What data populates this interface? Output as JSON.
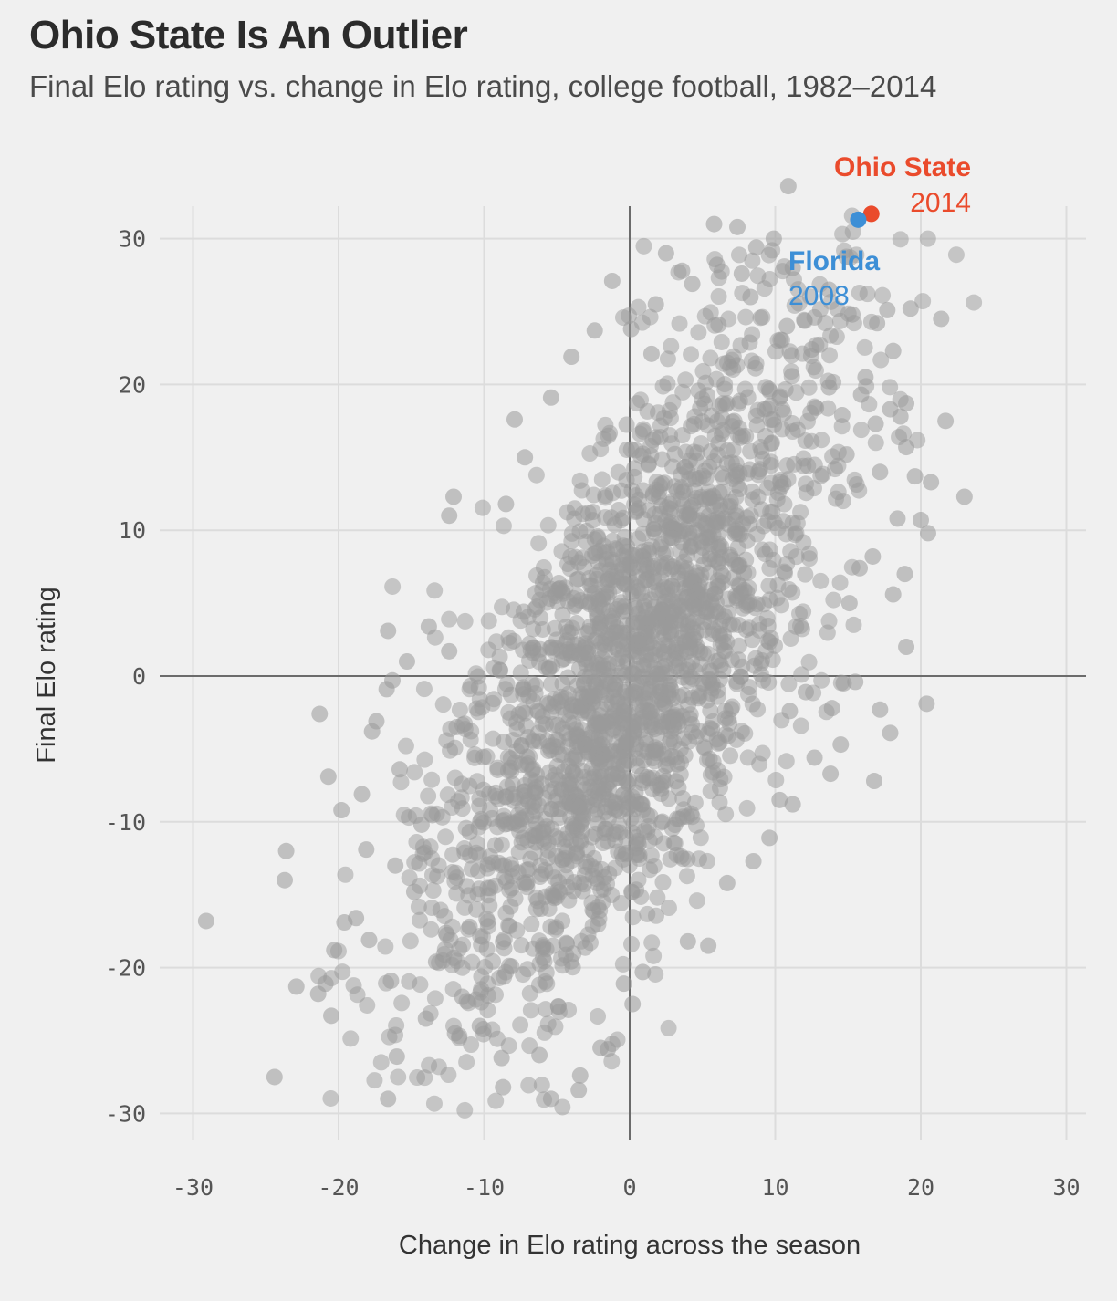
{
  "header": {
    "title": "Ohio State Is An Outlier",
    "subtitle": "Final Elo rating vs. change in Elo rating, college football, 1982–2014"
  },
  "chart_data": {
    "type": "scatter",
    "title": "Ohio State Is An Outlier",
    "subtitle": "Final Elo rating vs. change in Elo rating, college football, 1982–2014",
    "xlabel": "Change in Elo rating across the season",
    "ylabel": "Final Elo rating",
    "xlim": [
      -33,
      31.5
    ],
    "ylim": [
      -33,
      32
    ],
    "x_ticks": [
      -30,
      -20,
      -10,
      0,
      10,
      20,
      30
    ],
    "y_ticks": [
      -30,
      -20,
      -10,
      0,
      10,
      20,
      30
    ],
    "x_tick_labels": [
      "-30",
      "-20",
      "-10",
      "0",
      "10",
      "20",
      "30"
    ],
    "y_tick_labels": [
      "-30",
      "-20",
      "-10",
      "0",
      "10",
      "20",
      "30"
    ],
    "grid": true,
    "colors": {
      "background": "#f0f0f0",
      "grid": "#dcdcdc",
      "zero_line": "#6b6b6b",
      "points": "#999999",
      "ohio_state": "#ea4b2c",
      "florida": "#3d8fd6"
    },
    "highlights": [
      {
        "name": "Ohio State",
        "year": "2014",
        "x": 16.6,
        "y": 31.7,
        "color": "#ea4b2c"
      },
      {
        "name": "Florida",
        "year": "2008",
        "x": 15.7,
        "y": 31.3,
        "color": "#3d8fd6"
      }
    ],
    "series": [
      {
        "points": [
          [
            10.9,
            33.6
          ],
          [
            5.8,
            31.0
          ],
          [
            7.4,
            30.8
          ],
          [
            9.9,
            30.0
          ],
          [
            8.7,
            29.4
          ],
          [
            6.0,
            28.2
          ],
          [
            2.5,
            29.0
          ],
          [
            7.7,
            27.6
          ],
          [
            3.6,
            27.8
          ],
          [
            -1.2,
            27.1
          ],
          [
            11.2,
            28.0
          ],
          [
            13.7,
            26.5
          ],
          [
            4.3,
            26.9
          ],
          [
            8.3,
            26.0
          ],
          [
            1.8,
            25.5
          ],
          [
            17.7,
            25.1
          ],
          [
            19.3,
            25.2
          ],
          [
            21.4,
            24.5
          ],
          [
            12.7,
            24.6
          ],
          [
            15.3,
            24.8
          ],
          [
            10.8,
            24.0
          ],
          [
            17.0,
            24.2
          ],
          [
            6.1,
            24.1
          ],
          [
            -2.4,
            23.7
          ],
          [
            0.1,
            23.8
          ],
          [
            18.1,
            22.3
          ],
          [
            -4.0,
            21.9
          ],
          [
            1.5,
            22.1
          ],
          [
            12.5,
            22.4
          ],
          [
            16.2,
            20.5
          ],
          [
            13.7,
            19.8
          ],
          [
            17.9,
            18.3
          ],
          [
            19.0,
            18.7
          ],
          [
            15.9,
            19.3
          ],
          [
            21.7,
            17.5
          ],
          [
            18.6,
            17.8
          ],
          [
            14.6,
            17.9
          ],
          [
            12.8,
            18.4
          ],
          [
            16.9,
            17.3
          ],
          [
            -5.4,
            19.1
          ],
          [
            -7.9,
            17.6
          ],
          [
            19.0,
            15.7
          ],
          [
            14.9,
            15.2
          ],
          [
            17.2,
            14.0
          ],
          [
            19.6,
            13.7
          ],
          [
            20.7,
            13.3
          ],
          [
            23.0,
            12.3
          ],
          [
            -7.2,
            15.0
          ],
          [
            -12.1,
            12.3
          ],
          [
            -12.4,
            11.0
          ],
          [
            -8.5,
            11.8
          ],
          [
            20.0,
            10.7
          ],
          [
            18.4,
            10.8
          ],
          [
            20.5,
            9.8
          ],
          [
            16.7,
            8.2
          ],
          [
            15.8,
            7.4
          ],
          [
            18.9,
            7.0
          ],
          [
            18.1,
            5.6
          ],
          [
            15.1,
            5.0
          ],
          [
            19.0,
            2.0
          ],
          [
            -16.6,
            3.1
          ],
          [
            -13.8,
            3.4
          ],
          [
            -12.4,
            1.7
          ],
          [
            -15.3,
            1.0
          ],
          [
            -16.3,
            -0.3
          ],
          [
            -16.7,
            -0.9
          ],
          [
            14.7,
            -0.5
          ],
          [
            15.5,
            -0.4
          ],
          [
            20.4,
            -1.9
          ],
          [
            17.2,
            -2.3
          ],
          [
            17.9,
            -3.9
          ],
          [
            14.5,
            -4.7
          ],
          [
            -21.3,
            -2.6
          ],
          [
            -17.4,
            -3.1
          ],
          [
            -17.7,
            -3.8
          ],
          [
            -20.7,
            -6.9
          ],
          [
            -15.8,
            -6.4
          ],
          [
            -18.4,
            -8.1
          ],
          [
            16.8,
            -7.2
          ],
          [
            -19.8,
            -9.2
          ],
          [
            -14.3,
            -10.2
          ],
          [
            -11.0,
            -10.7
          ],
          [
            -18.1,
            -11.9
          ],
          [
            -23.6,
            -12.0
          ],
          [
            -16.1,
            -13.0
          ],
          [
            -23.7,
            -14.0
          ],
          [
            -14.8,
            -14.8
          ],
          [
            -19.6,
            -16.9
          ],
          [
            -18.8,
            -16.6
          ],
          [
            -29.1,
            -16.8
          ],
          [
            -17.9,
            -18.1
          ],
          [
            -11.0,
            -17.2
          ],
          [
            -20.3,
            -18.8
          ],
          [
            -13.3,
            -19.6
          ],
          [
            -22.9,
            -21.3
          ],
          [
            -21.4,
            -21.8
          ],
          [
            -20.9,
            -21.1
          ],
          [
            -20.5,
            -23.3
          ],
          [
            -16.4,
            -20.9
          ],
          [
            -16.0,
            -26.1
          ],
          [
            -14.0,
            -23.5
          ],
          [
            -11.5,
            -22.0
          ],
          [
            -10.3,
            -24.0
          ],
          [
            -12.0,
            -24.5
          ],
          [
            -24.4,
            -27.5
          ],
          [
            -16.6,
            -29.0
          ],
          [
            -8.8,
            -26.2
          ],
          [
            -8.7,
            -28.2
          ],
          [
            -5.4,
            -29.0
          ],
          [
            -3.5,
            -28.4
          ],
          [
            -3.4,
            -27.4
          ],
          [
            -6.2,
            -26.0
          ],
          [
            -2.0,
            -25.5
          ],
          [
            -0.4,
            -21.1
          ],
          [
            -1.5,
            -25.6
          ],
          [
            0.2,
            -22.5
          ],
          [
            0.9,
            -20.3
          ],
          [
            4.0,
            -18.2
          ],
          [
            5.4,
            -18.5
          ],
          [
            6.7,
            -14.2
          ],
          [
            8.5,
            -12.7
          ],
          [
            9.6,
            -11.1
          ],
          [
            11.2,
            -8.8
          ],
          [
            10.3,
            -8.5
          ],
          [
            13.8,
            -6.7
          ],
          [
            12.7,
            -5.6
          ],
          [
            13.9,
            -2.2
          ],
          [
            12.1,
            -1.1
          ],
          [
            11.0,
            -2.4
          ]
        ]
      }
    ]
  }
}
